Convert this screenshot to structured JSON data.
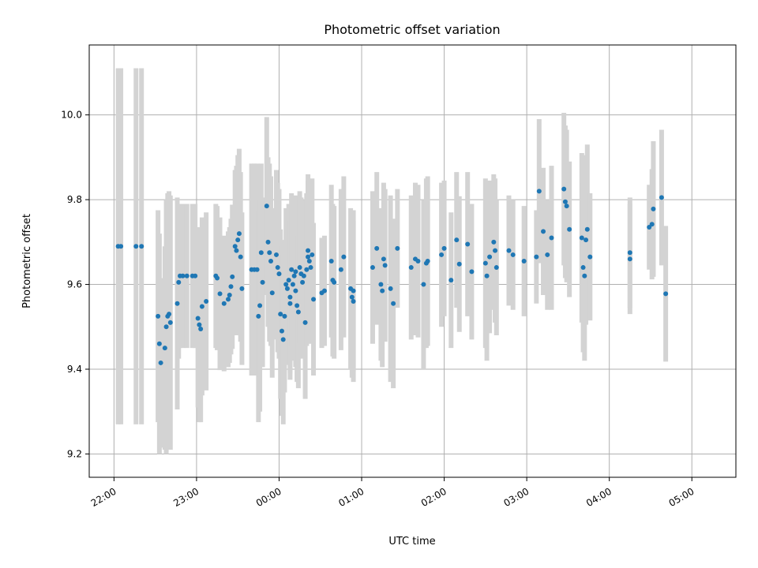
{
  "chart_data": {
    "type": "scatter",
    "title": "Photometric offset variation",
    "xlabel": "UTC time",
    "ylabel": "Photometric offset",
    "x_unit": "UTC time (HH:MM)",
    "xlim": [
      "21:42",
      "05:32"
    ],
    "ylim": [
      9.145,
      10.165
    ],
    "x_ticks": [
      "22:00",
      "23:00",
      "00:00",
      "01:00",
      "02:00",
      "03:00",
      "04:00",
      "05:00"
    ],
    "y_ticks": [
      9.2,
      9.4,
      9.6,
      9.8,
      10.0
    ],
    "y_tick_labels": [
      "9.2",
      "9.4",
      "9.6",
      "9.8",
      "10.0"
    ],
    "grid": true,
    "legend": "none",
    "colors": {
      "points": "#1f77b4",
      "error_bars": "#d3d3d3",
      "grid": "#b0b0b0",
      "axes": "#000000"
    },
    "series": [
      {
        "points": [
          [
            "22:03",
            9.69,
            0.42
          ],
          [
            "22:05",
            9.69,
            0.42
          ],
          [
            "22:16",
            9.69,
            0.42
          ],
          [
            "22:20",
            9.69,
            0.42
          ],
          [
            "22:32",
            9.525,
            0.25
          ],
          [
            "22:33",
            9.46,
            0.26
          ],
          [
            "22:34",
            9.415,
            0.2
          ],
          [
            "22:37",
            9.45,
            0.24
          ],
          [
            "22:38",
            9.5,
            0.3
          ],
          [
            "22:39",
            9.525,
            0.29
          ],
          [
            "22:40",
            9.53,
            0.29
          ],
          [
            "22:41",
            9.51,
            0.3
          ],
          [
            "22:46",
            9.555,
            0.25
          ],
          [
            "22:47",
            9.605,
            0.18
          ],
          [
            "22:48",
            9.62,
            0.17
          ],
          [
            "22:50",
            9.62,
            0.17
          ],
          [
            "22:53",
            9.62,
            0.17
          ],
          [
            "22:57",
            9.62,
            0.17
          ],
          [
            "22:59",
            9.62,
            0.17
          ],
          [
            "23:01",
            9.52,
            0.21
          ],
          [
            "23:02",
            9.505,
            0.23
          ],
          [
            "23:03",
            9.495,
            0.22
          ],
          [
            "23:04",
            9.548,
            0.21
          ],
          [
            "23:07",
            9.56,
            0.21
          ],
          [
            "23:14",
            9.62,
            0.17
          ],
          [
            "23:15",
            9.615,
            0.17
          ],
          [
            "23:17",
            9.578,
            0.18
          ],
          [
            "23:20",
            9.555,
            0.16
          ],
          [
            "23:23",
            9.565,
            0.16
          ],
          [
            "23:24",
            9.575,
            0.16
          ],
          [
            "23:25",
            9.595,
            0.16
          ],
          [
            "23:26",
            9.618,
            0.17
          ],
          [
            "23:28",
            9.69,
            0.18
          ],
          [
            "23:29",
            9.68,
            0.2
          ],
          [
            "23:30",
            9.705,
            0.2
          ],
          [
            "23:31",
            9.72,
            0.2
          ],
          [
            "23:32",
            9.665,
            0.2
          ],
          [
            "23:33",
            9.59,
            0.18
          ],
          [
            "23:40",
            9.635,
            0.25
          ],
          [
            "23:42",
            9.635,
            0.25
          ],
          [
            "23:44",
            9.635,
            0.25
          ],
          [
            "23:45",
            9.525,
            0.25
          ],
          [
            "23:46",
            9.55,
            0.25
          ],
          [
            "23:47",
            9.675,
            0.21
          ],
          [
            "23:48",
            9.605,
            0.2
          ],
          [
            "23:51",
            9.785,
            0.21
          ],
          [
            "23:52",
            9.7,
            0.2
          ],
          [
            "23:53",
            9.675,
            0.21
          ],
          [
            "23:54",
            9.655,
            0.2
          ],
          [
            "23:55",
            9.58,
            0.2
          ],
          [
            "23:58",
            9.67,
            0.2
          ],
          [
            "23:59",
            9.64,
            0.2
          ],
          [
            "00:00",
            9.625,
            0.2
          ],
          [
            "00:01",
            9.53,
            0.2
          ],
          [
            "00:02",
            9.49,
            0.2
          ],
          [
            "00:03",
            9.47,
            0.2
          ],
          [
            "00:04",
            9.525,
            0.18
          ],
          [
            "00:05",
            9.6,
            0.18
          ],
          [
            "00:06",
            9.59,
            0.18
          ],
          [
            "00:07",
            9.61,
            0.18
          ],
          [
            "00:08",
            9.57,
            0.18
          ],
          [
            "00:08",
            9.555,
            0.18
          ],
          [
            "00:09",
            9.635,
            0.18
          ],
          [
            "00:10",
            9.6,
            0.18
          ],
          [
            "00:11",
            9.62,
            0.18
          ],
          [
            "00:12",
            9.63,
            0.18
          ],
          [
            "00:12",
            9.585,
            0.18
          ],
          [
            "00:13",
            9.55,
            0.18
          ],
          [
            "00:14",
            9.535,
            0.18
          ],
          [
            "00:15",
            9.64,
            0.18
          ],
          [
            "00:16",
            9.625,
            0.18
          ],
          [
            "00:17",
            9.605,
            0.18
          ],
          [
            "00:18",
            9.62,
            0.18
          ],
          [
            "00:19",
            9.51,
            0.18
          ],
          [
            "00:20",
            9.635,
            0.18
          ],
          [
            "00:21",
            9.665,
            0.18
          ],
          [
            "00:21",
            9.68,
            0.18
          ],
          [
            "00:22",
            9.655,
            0.18
          ],
          [
            "00:23",
            9.64,
            0.18
          ],
          [
            "00:24",
            9.67,
            0.18
          ],
          [
            "00:25",
            9.565,
            0.18
          ],
          [
            "00:31",
            9.58,
            0.13
          ],
          [
            "00:33",
            9.585,
            0.13
          ],
          [
            "00:38",
            9.655,
            0.18
          ],
          [
            "00:39",
            9.61,
            0.18
          ],
          [
            "00:40",
            9.605,
            0.18
          ],
          [
            "00:45",
            9.635,
            0.19
          ],
          [
            "00:47",
            9.665,
            0.19
          ],
          [
            "00:52",
            9.59,
            0.19
          ],
          [
            "00:53",
            9.57,
            0.19
          ],
          [
            "00:54",
            9.585,
            0.19
          ],
          [
            "00:54",
            9.56,
            0.19
          ],
          [
            "01:08",
            9.64,
            0.18
          ],
          [
            "01:11",
            9.685,
            0.18
          ],
          [
            "01:14",
            9.6,
            0.18
          ],
          [
            "01:15",
            9.585,
            0.18
          ],
          [
            "01:16",
            9.66,
            0.18
          ],
          [
            "01:17",
            9.645,
            0.18
          ],
          [
            "01:21",
            9.59,
            0.22
          ],
          [
            "01:23",
            9.555,
            0.2
          ],
          [
            "01:26",
            9.685,
            0.14
          ],
          [
            "01:36",
            9.64,
            0.17
          ],
          [
            "01:39",
            9.66,
            0.18
          ],
          [
            "01:41",
            9.655,
            0.18
          ],
          [
            "01:45",
            9.6,
            0.2
          ],
          [
            "01:47",
            9.65,
            0.2
          ],
          [
            "01:48",
            9.655,
            0.2
          ],
          [
            "01:58",
            9.67,
            0.17
          ],
          [
            "02:00",
            9.685,
            0.16
          ],
          [
            "02:05",
            9.61,
            0.16
          ],
          [
            "02:09",
            9.705,
            0.16
          ],
          [
            "02:11",
            9.648,
            0.16
          ],
          [
            "02:17",
            9.695,
            0.17
          ],
          [
            "02:20",
            9.63,
            0.16
          ],
          [
            "02:30",
            9.65,
            0.2
          ],
          [
            "02:31",
            9.62,
            0.2
          ],
          [
            "02:33",
            9.665,
            0.18
          ],
          [
            "02:36",
            9.7,
            0.16
          ],
          [
            "02:37",
            9.68,
            0.17
          ],
          [
            "02:38",
            9.64,
            0.16
          ],
          [
            "02:47",
            9.68,
            0.13
          ],
          [
            "02:50",
            9.67,
            0.13
          ],
          [
            "02:58",
            9.655,
            0.13
          ],
          [
            "03:07",
            9.665,
            0.11
          ],
          [
            "03:09",
            9.82,
            0.17
          ],
          [
            "03:12",
            9.725,
            0.15
          ],
          [
            "03:15",
            9.67,
            0.13
          ],
          [
            "03:18",
            9.71,
            0.17
          ],
          [
            "03:27",
            9.825,
            0.18
          ],
          [
            "03:28",
            9.795,
            0.18
          ],
          [
            "03:29",
            9.785,
            0.18
          ],
          [
            "03:31",
            9.73,
            0.16
          ],
          [
            "03:40",
            9.71,
            0.2
          ],
          [
            "03:41",
            9.64,
            0.2
          ],
          [
            "03:42",
            9.62,
            0.2
          ],
          [
            "03:43",
            9.705,
            0.2
          ],
          [
            "03:44",
            9.73,
            0.2
          ],
          [
            "03:46",
            9.665,
            0.15
          ],
          [
            "04:15",
            9.675,
            0.13
          ],
          [
            "04:15",
            9.66,
            0.13
          ],
          [
            "04:29",
            9.735,
            0.1
          ],
          [
            "04:31",
            9.742,
            0.13
          ],
          [
            "04:32",
            9.778,
            0.16
          ],
          [
            "04:38",
            9.805,
            0.16
          ],
          [
            "04:41",
            9.578,
            0.16
          ]
        ]
      }
    ]
  }
}
